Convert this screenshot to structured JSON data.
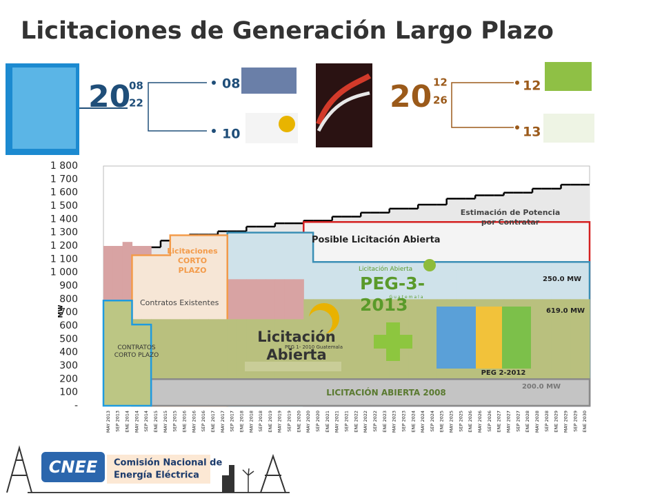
{
  "slide": {
    "title": "Licitaciones de Generación Largo Plazo",
    "left": {
      "year": "20",
      "sub": [
        "08",
        "22"
      ],
      "items": [
        "08",
        "10"
      ]
    },
    "right": {
      "year": "20",
      "sub": [
        "12",
        "26"
      ],
      "items": [
        "12",
        "13"
      ]
    },
    "footer": {
      "acronym": "CNEE",
      "org": [
        "Comisión Nacional de",
        "Energía Eléctrica"
      ]
    }
  },
  "chart_data": {
    "type": "area",
    "categories": [
      "MAY 2013",
      "SEP 2013",
      "ENE 2014",
      "MAY 2014",
      "SEP 2014",
      "ENE 2015",
      "MAY 2015",
      "SEP 2015",
      "ENE 2016",
      "MAY 2016",
      "SEP 2016",
      "ENE 2017",
      "MAY 2017",
      "SEP 2017",
      "ENE 2018",
      "MAY 2018",
      "SEP 2018",
      "ENE 2019",
      "MAY 2019",
      "SEP 2019",
      "ENE 2020",
      "MAY 2020",
      "SEP 2020",
      "ENE 2021",
      "MAY 2021",
      "SEP 2021",
      "ENE 2022",
      "MAY 2022",
      "SEP 2022",
      "ENE 2023",
      "MAY 2023",
      "SEP 2023",
      "ENE 2024",
      "MAY 2024",
      "SEP 2024",
      "ENE 2025",
      "MAY 2025",
      "SEP 2025",
      "ENE 2026",
      "MAY 2026",
      "SEP 2026",
      "ENE 2027",
      "MAY 2027",
      "SEP 2027",
      "ENE 2028",
      "MAY 2028",
      "SEP 2028",
      "ENE 2029",
      "MAY 2029",
      "SEP 2029",
      "ENE 2030"
    ],
    "y_label": "MW",
    "ylim": [
      0,
      1800
    ],
    "yticks": [
      {
        "value": 0,
        "label": "-"
      },
      100,
      200,
      300,
      400,
      500,
      600,
      700,
      800,
      900,
      {
        "value": 1000,
        "label": "1 000"
      },
      {
        "value": 1100,
        "label": "1 100"
      },
      {
        "value": 1200,
        "label": "1 200"
      },
      {
        "value": 1300,
        "label": "1 300"
      },
      {
        "value": 1400,
        "label": "1 400"
      },
      {
        "value": 1500,
        "label": "1 500"
      },
      {
        "value": 1600,
        "label": "1 600"
      },
      {
        "value": 1700,
        "label": "1 700"
      },
      {
        "value": 1800,
        "label": "1 800"
      }
    ],
    "grid": false,
    "series": [
      {
        "name": "Estimación de Potencia por Contratar",
        "color": "#e8e8e8",
        "line": "#000000",
        "values": [
          1165,
          1165,
          1165,
          1190,
          1190,
          1190,
          1240,
          1240,
          1240,
          1285,
          1285,
          1285,
          1310,
          1310,
          1310,
          1345,
          1345,
          1345,
          1370,
          1370,
          1370,
          1390,
          1390,
          1390,
          1420,
          1420,
          1420,
          1450,
          1450,
          1450,
          1480,
          1480,
          1480,
          1510,
          1510,
          1510,
          1555,
          1555,
          1555,
          1580,
          1580,
          1580,
          1600,
          1600,
          1600,
          1630,
          1630,
          1630,
          1660,
          1660,
          1660
        ]
      },
      {
        "name": "Posible Licitación Abierta",
        "color": "#f4f4f4",
        "stroke": "#d42020",
        "values": [
          null,
          null,
          null,
          null,
          null,
          null,
          null,
          null,
          null,
          null,
          null,
          null,
          null,
          null,
          null,
          null,
          null,
          null,
          null,
          null,
          null,
          1380,
          1380,
          1380,
          1380,
          1380,
          1380,
          1380,
          1380,
          1380,
          1380,
          1380,
          1380,
          1380,
          1380,
          1380,
          1380,
          1380,
          1380,
          1380,
          1380,
          1380,
          1380,
          1380,
          1380,
          1380,
          1380,
          1380,
          1380,
          1380,
          1380
        ]
      },
      {
        "name": "PEG-3-2013",
        "color": "#cfe2ea",
        "stroke": "#3a8fb5",
        "values": [
          null,
          null,
          null,
          null,
          null,
          null,
          null,
          null,
          null,
          null,
          null,
          null,
          null,
          1300,
          1300,
          1300,
          1300,
          1300,
          1300,
          1300,
          1300,
          1300,
          1080,
          1080,
          1080,
          1080,
          1080,
          1080,
          1080,
          1080,
          1080,
          1080,
          1080,
          1080,
          1080,
          1080,
          1080,
          1080,
          1080,
          1080,
          1080,
          1080,
          1080,
          1080,
          1080,
          1080,
          1080,
          1080,
          1080,
          1080,
          1080
        ]
      },
      {
        "name": "Contratos Existentes",
        "color": "#d8a3a3",
        "values": [
          1200,
          1200,
          1230,
          1200,
          1200,
          950,
          950,
          950,
          950,
          950,
          950,
          950,
          950,
          950,
          950,
          950,
          950,
          950,
          950,
          950,
          950,
          null,
          null,
          null,
          null,
          null,
          null,
          null,
          null,
          null,
          null,
          null,
          null,
          null,
          null,
          null,
          null,
          null,
          null,
          null,
          null,
          null,
          null,
          null,
          null,
          null,
          null,
          null,
          null,
          null,
          null
        ]
      },
      {
        "name": "Licitaciones CORTO PLAZO",
        "color": "#f6e6d6",
        "stroke": "#f39b4a",
        "values": [
          null,
          null,
          null,
          1130,
          1130,
          1130,
          1130,
          1280,
          1280,
          1280,
          1280,
          1280,
          1280,
          null,
          null,
          null,
          null,
          null,
          null,
          null,
          null,
          null,
          null,
          null,
          null,
          null,
          null,
          null,
          null,
          null,
          null,
          null,
          null,
          null,
          null,
          null,
          null,
          null,
          null,
          null,
          null,
          null,
          null,
          null,
          null,
          null,
          null,
          null,
          null,
          null,
          null
        ]
      },
      {
        "name": "Licitación Abierta PEG 1",
        "color": "#b9c07e",
        "values": [
          null,
          null,
          null,
          650,
          650,
          650,
          650,
          650,
          650,
          650,
          650,
          650,
          650,
          650,
          650,
          650,
          650,
          650,
          650,
          650,
          650,
          800,
          800,
          800,
          800,
          800,
          800,
          800,
          800,
          800,
          800,
          800,
          800,
          800,
          800,
          800,
          800,
          800,
          800,
          800,
          800,
          800,
          800,
          800,
          800,
          800,
          800,
          800,
          800,
          800,
          800
        ]
      },
      {
        "name": "LICITACIÓN ABIERTA 2008",
        "color": "#c4c4c4",
        "stroke": "#8a8a8a",
        "values": [
          null,
          null,
          null,
          null,
          null,
          200,
          200,
          200,
          200,
          200,
          200,
          200,
          200,
          200,
          200,
          200,
          200,
          200,
          200,
          200,
          200,
          200,
          200,
          200,
          200,
          200,
          200,
          200,
          200,
          200,
          200,
          200,
          200,
          200,
          200,
          200,
          200,
          200,
          200,
          200,
          200,
          200,
          200,
          200,
          200,
          200,
          200,
          200,
          200,
          200,
          200
        ]
      },
      {
        "name": "CONTRATOS CORTO PLAZO",
        "color": "#bcc684",
        "stroke": "#1e9be0",
        "values": [
          790,
          790,
          790,
          610,
          610,
          null,
          null,
          null,
          null,
          null,
          null,
          null,
          null,
          null,
          null,
          null,
          null,
          null,
          null,
          null,
          null,
          null,
          null,
          null,
          null,
          null,
          null,
          null,
          null,
          null,
          null,
          null,
          null,
          null,
          null,
          null,
          null,
          null,
          null,
          null,
          null,
          null,
          null,
          null,
          null,
          null,
          null,
          null,
          null,
          null,
          null
        ]
      }
    ],
    "annotations": [
      "250.0 MW",
      "619.0 MW",
      "200.0 MW"
    ],
    "logos": [
      "Licitación Abierta",
      "PEG 1- 2010 Guatemala",
      "Licitación Abierta",
      "PEG-3-2013",
      "Guatemala",
      "PEG 2-2012"
    ]
  }
}
